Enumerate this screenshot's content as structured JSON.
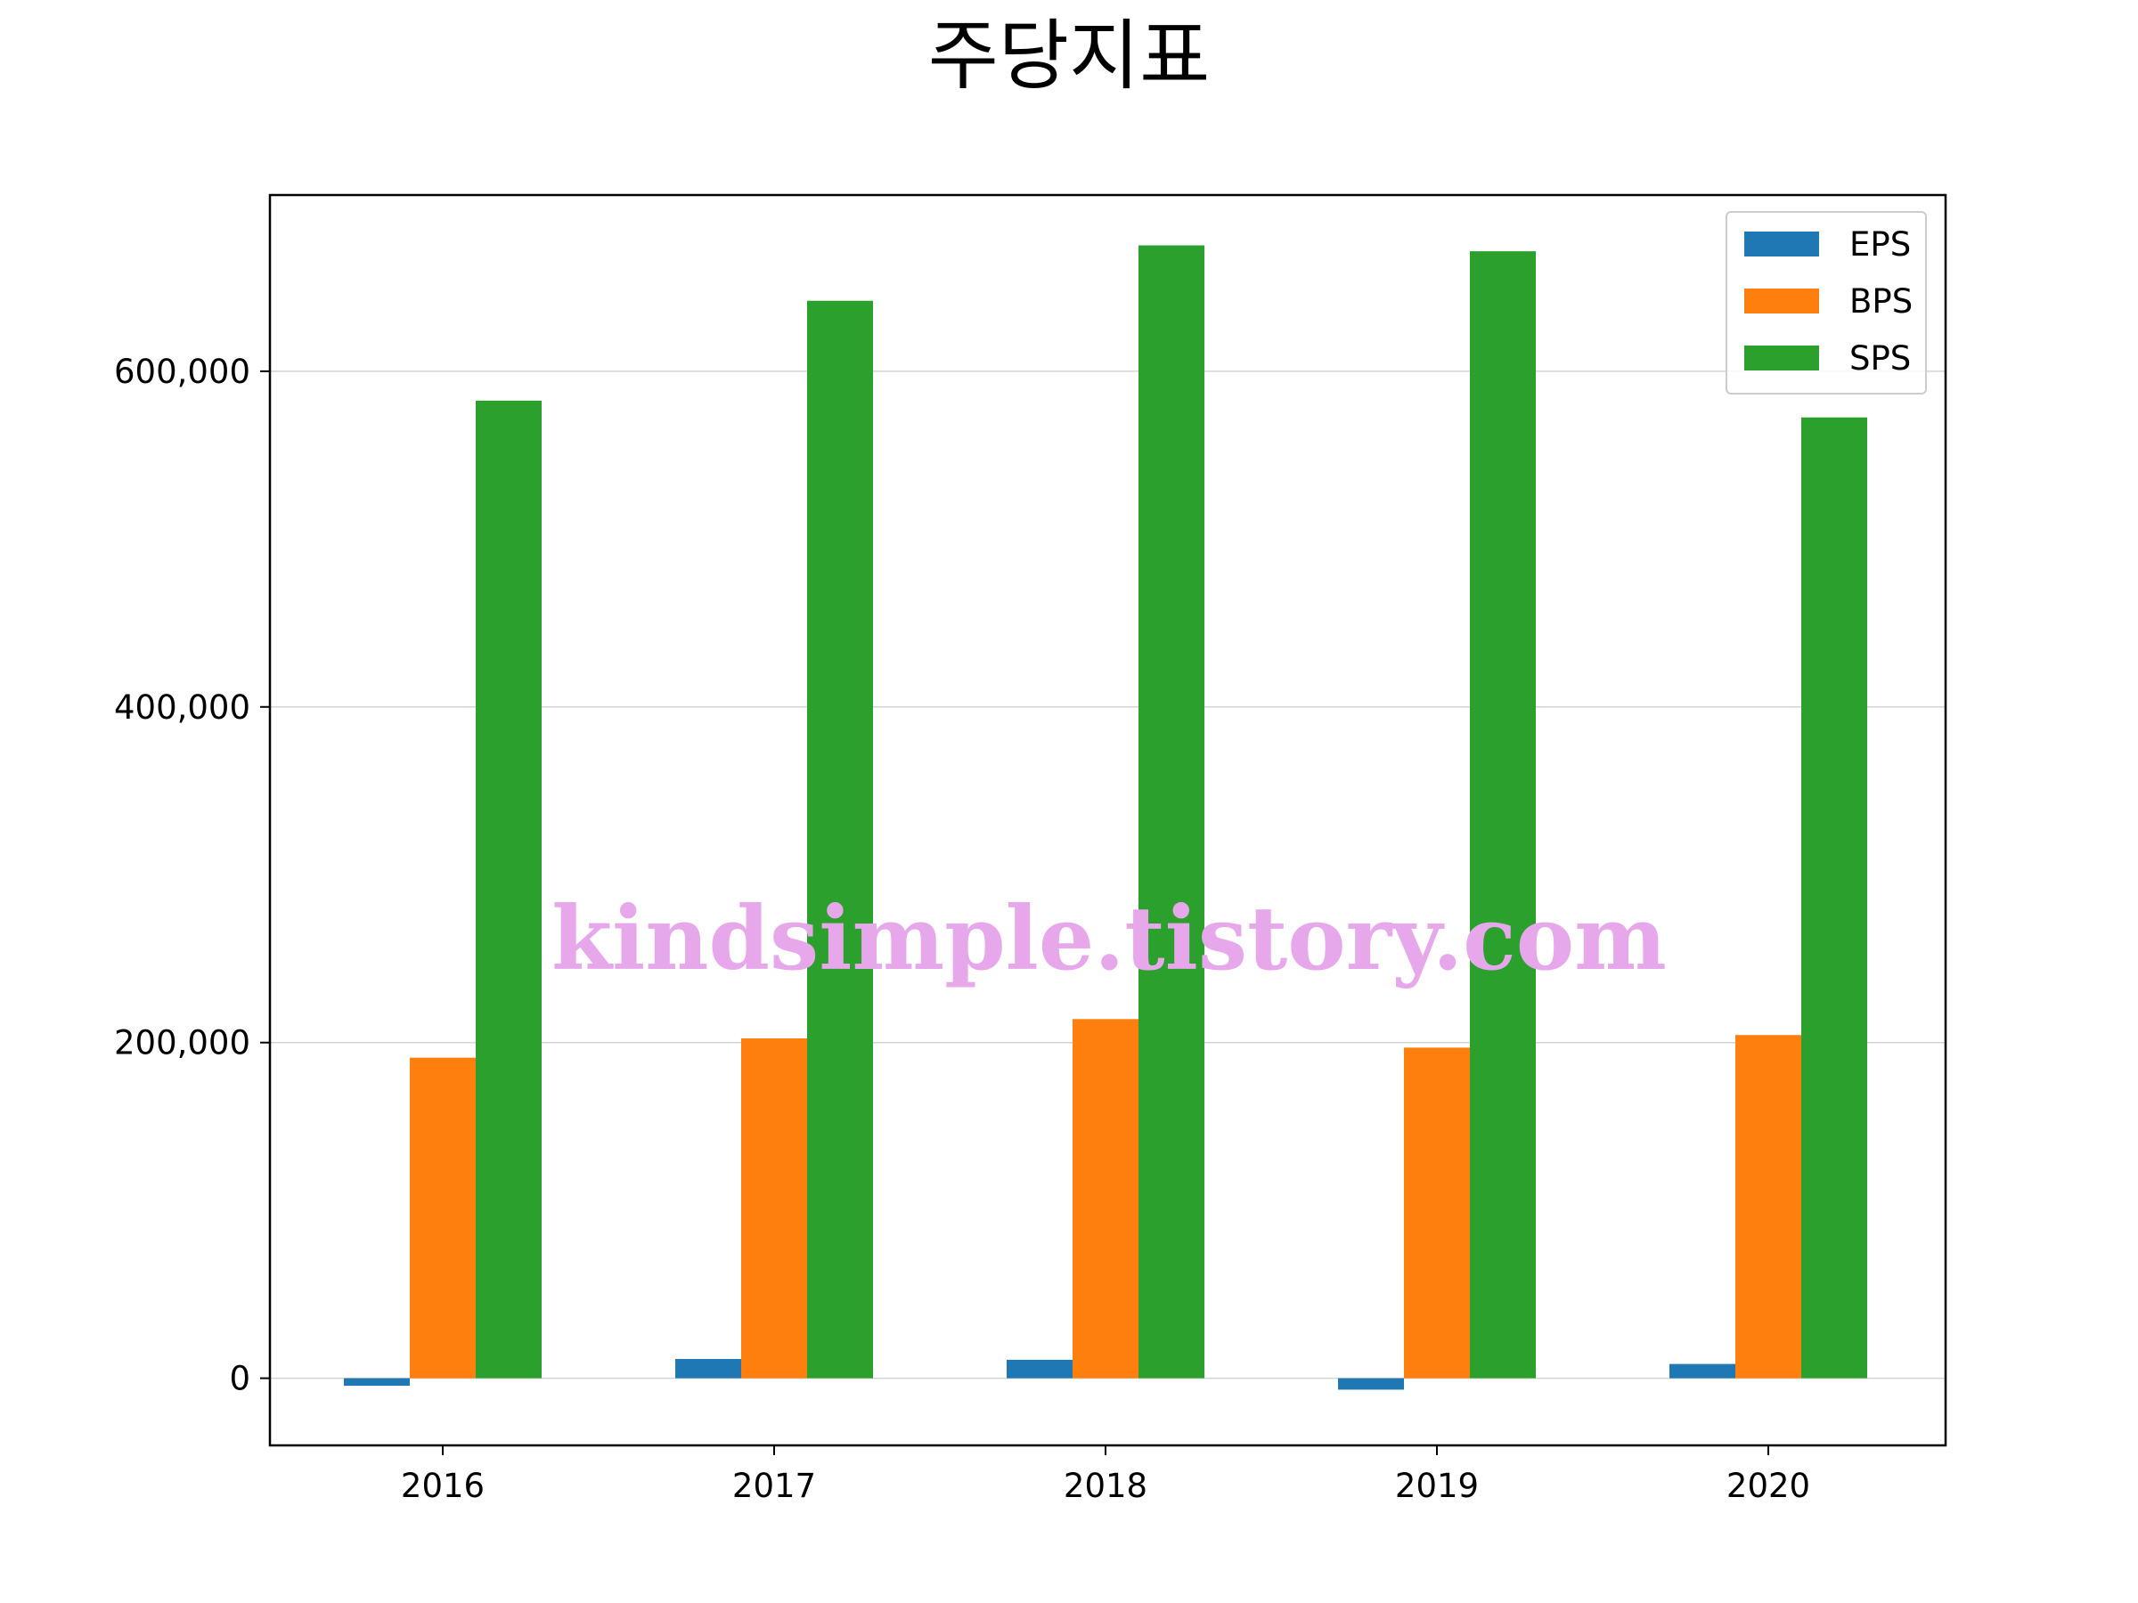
{
  "chart_data": {
    "type": "bar",
    "title": "주당지표",
    "xlabel": "",
    "ylabel": "",
    "categories": [
      "2016",
      "2017",
      "2018",
      "2019",
      "2020"
    ],
    "series": [
      {
        "name": "EPS",
        "color": "#1f77b4",
        "values": [
          -4500,
          11500,
          11000,
          -6800,
          8500
        ]
      },
      {
        "name": "BPS",
        "color": "#ff7f0e",
        "values": [
          191000,
          202500,
          214000,
          197000,
          204500
        ]
      },
      {
        "name": "SPS",
        "color": "#2ca02c",
        "values": [
          582500,
          642000,
          675000,
          671500,
          572500
        ]
      }
    ],
    "ylim": [
      -40000,
      705000
    ],
    "yticks": [
      0,
      200000,
      400000,
      600000
    ],
    "ytick_labels": [
      "0",
      "200,000",
      "400,000",
      "600,000"
    ],
    "grid": "horizontal",
    "legend_position": "top-right",
    "watermark": "kindsimple.tistory.com"
  }
}
